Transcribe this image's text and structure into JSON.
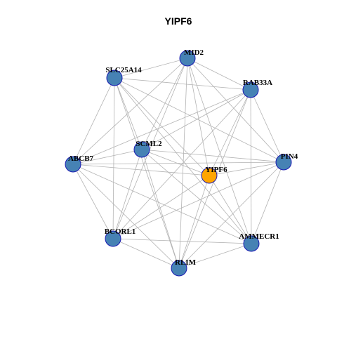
{
  "title": "YIPF6",
  "nodes": [
    {
      "label": "MID2"
    },
    {
      "label": "SLC25A14"
    },
    {
      "label": "RAB33A"
    },
    {
      "label": "SCML2"
    },
    {
      "label": "ABCB7"
    },
    {
      "label": "PIN4"
    },
    {
      "label": "YIPF6"
    },
    {
      "label": "BCORL1"
    },
    {
      "label": "AMMECR1"
    },
    {
      "label": "RLIM"
    }
  ]
}
